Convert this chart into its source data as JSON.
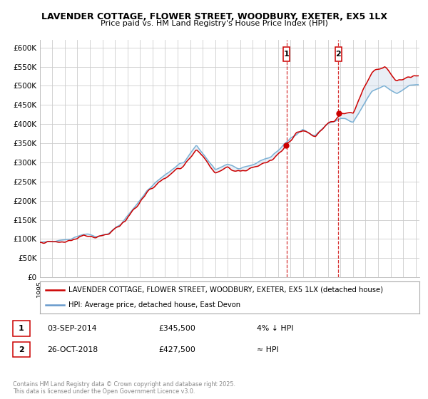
{
  "title_line1": "LAVENDER COTTAGE, FLOWER STREET, WOODBURY, EXETER, EX5 1LX",
  "title_line2": "Price paid vs. HM Land Registry's House Price Index (HPI)",
  "ylim": [
    0,
    620000
  ],
  "yticks": [
    0,
    50000,
    100000,
    150000,
    200000,
    250000,
    300000,
    350000,
    400000,
    450000,
    500000,
    550000,
    600000
  ],
  "ytick_labels": [
    "£0",
    "£50K",
    "£100K",
    "£150K",
    "£200K",
    "£250K",
    "£300K",
    "£350K",
    "£400K",
    "£450K",
    "£500K",
    "£550K",
    "£600K"
  ],
  "legend_entries": [
    "LAVENDER COTTAGE, FLOWER STREET, WOODBURY, EXETER, EX5 1LX (detached house)",
    "HPI: Average price, detached house, East Devon"
  ],
  "legend_colors": [
    "#cc0000",
    "#6699cc"
  ],
  "marker1_date": "03-SEP-2014",
  "marker1_price": "£345,500",
  "marker1_label": "1",
  "marker1_hpi_diff": "4% ↓ HPI",
  "marker2_date": "26-OCT-2018",
  "marker2_price": "£427,500",
  "marker2_label": "2",
  "marker2_hpi_diff": "≈ HPI",
  "footer": "Contains HM Land Registry data © Crown copyright and database right 2025.\nThis data is licensed under the Open Government Licence v3.0.",
  "background_color": "#ffffff",
  "grid_color": "#cccccc",
  "hpi_line_color": "#7ab0d4",
  "price_line_color": "#cc0000",
  "marker_color": "#cc0000",
  "shade_color": "#c8d8ea",
  "sale1_year": 2014.7,
  "sale2_year": 2018.83,
  "sale1_price": 345500,
  "sale2_price": 427500
}
